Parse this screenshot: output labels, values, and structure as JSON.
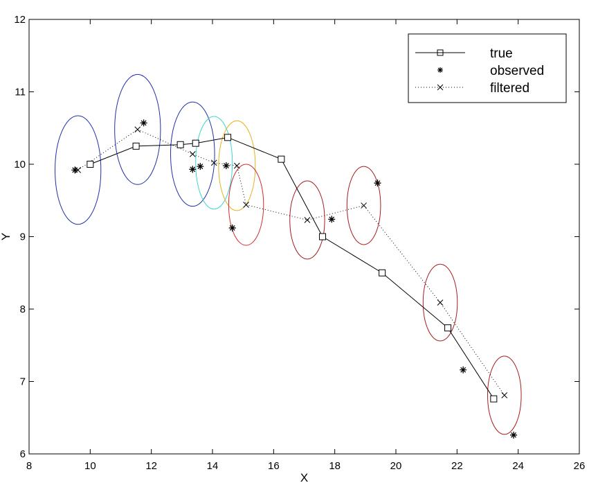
{
  "chart_data": {
    "type": "line",
    "title": "",
    "xlabel": "X",
    "ylabel": "Y",
    "xlim": [
      8,
      26
    ],
    "ylim": [
      6,
      12
    ],
    "xticks": [
      8,
      10,
      12,
      14,
      16,
      18,
      20,
      22,
      24,
      26
    ],
    "yticks": [
      6,
      7,
      8,
      9,
      10,
      11,
      12
    ],
    "grid": false,
    "legend_position": "top-right",
    "series": [
      {
        "name": "true",
        "style": "solid line with square markers",
        "color": "#000000",
        "points": [
          [
            10.0,
            10.0
          ],
          [
            11.5,
            10.25
          ],
          [
            12.95,
            10.27
          ],
          [
            13.45,
            10.29
          ],
          [
            14.5,
            10.37
          ],
          [
            16.25,
            10.07
          ],
          [
            17.6,
            9.0
          ],
          [
            19.55,
            8.5
          ],
          [
            21.7,
            7.74
          ],
          [
            23.2,
            6.76
          ]
        ]
      },
      {
        "name": "observed",
        "style": "asterisk markers",
        "color": "#000000",
        "points": [
          [
            9.5,
            9.92
          ],
          [
            11.75,
            10.57
          ],
          [
            13.35,
            9.93
          ],
          [
            13.6,
            9.97
          ],
          [
            14.45,
            9.98
          ],
          [
            14.65,
            9.12
          ],
          [
            17.9,
            9.24
          ],
          [
            19.4,
            9.74
          ],
          [
            22.2,
            7.16
          ],
          [
            23.85,
            6.26
          ]
        ]
      },
      {
        "name": "filtered",
        "style": "dotted line with x markers",
        "color": "#000000",
        "points": [
          [
            9.6,
            9.92
          ],
          [
            11.55,
            10.48
          ],
          [
            13.35,
            10.14
          ],
          [
            14.05,
            10.02
          ],
          [
            14.8,
            9.98
          ],
          [
            15.1,
            9.44
          ],
          [
            17.1,
            9.23
          ],
          [
            18.95,
            9.43
          ],
          [
            21.45,
            8.09
          ],
          [
            23.55,
            6.81
          ]
        ]
      }
    ],
    "ellipses": [
      {
        "cx": 9.6,
        "cy": 9.92,
        "rx": 0.75,
        "ry": 0.75,
        "color": "#1f2fa8"
      },
      {
        "cx": 11.55,
        "cy": 10.48,
        "rx": 0.75,
        "ry": 0.76,
        "color": "#1f2fa8"
      },
      {
        "cx": 13.35,
        "cy": 10.14,
        "rx": 0.72,
        "ry": 0.72,
        "color": "#1f2fa8"
      },
      {
        "cx": 14.05,
        "cy": 10.02,
        "rx": 0.6,
        "ry": 0.64,
        "color": "#3ad6cf"
      },
      {
        "cx": 14.8,
        "cy": 9.98,
        "rx": 0.6,
        "ry": 0.62,
        "color": "#e5b21c"
      },
      {
        "cx": 15.1,
        "cy": 9.44,
        "rx": 0.57,
        "ry": 0.56,
        "color": "#d42a2a"
      },
      {
        "cx": 17.1,
        "cy": 9.23,
        "rx": 0.57,
        "ry": 0.54,
        "color": "#a61c1c"
      },
      {
        "cx": 18.95,
        "cy": 9.43,
        "rx": 0.55,
        "ry": 0.54,
        "color": "#a61c1c"
      },
      {
        "cx": 21.45,
        "cy": 8.09,
        "rx": 0.56,
        "ry": 0.53,
        "color": "#a61c1c"
      },
      {
        "cx": 23.55,
        "cy": 6.81,
        "rx": 0.55,
        "ry": 0.54,
        "color": "#a61c1c"
      }
    ]
  }
}
